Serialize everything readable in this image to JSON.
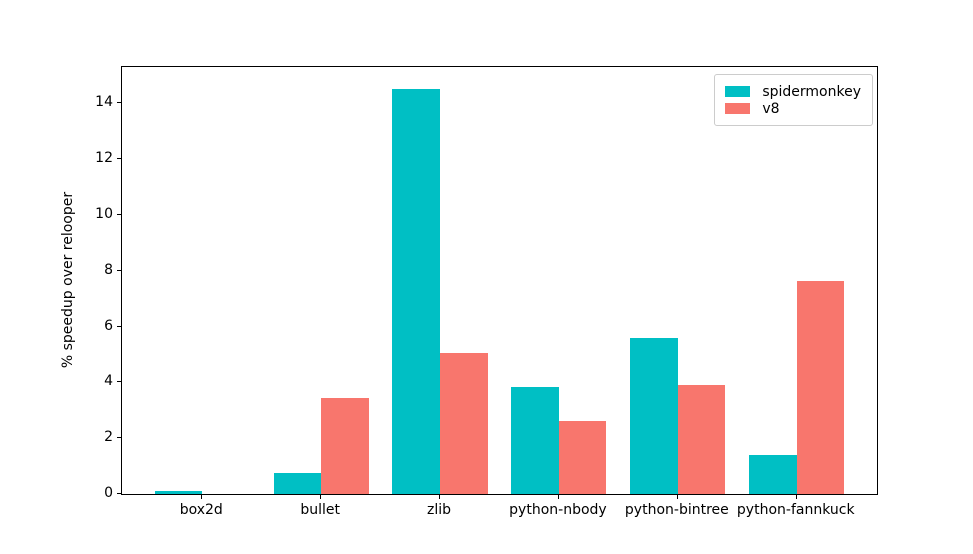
{
  "chart_data": {
    "type": "bar",
    "title": "",
    "xlabel": "",
    "ylabel": "% speedup over relooper",
    "categories": [
      "box2d",
      "bullet",
      "zlib",
      "python-nbody",
      "python-bintree",
      "python-fannkuck"
    ],
    "series": [
      {
        "name": "spidermonkey",
        "color": "#00BFC4",
        "values": [
          0.1,
          0.75,
          14.5,
          3.85,
          5.6,
          1.4
        ]
      },
      {
        "name": "v8",
        "color": "#F8766D",
        "values": [
          0.0,
          3.45,
          5.05,
          2.6,
          3.9,
          7.65
        ]
      }
    ],
    "yticks": [
      0,
      2,
      4,
      6,
      8,
      10,
      12,
      14
    ],
    "ylim": [
      0,
      15.3
    ],
    "grid": false,
    "legend_position": "upper right",
    "legend_labels": [
      "spidermonkey",
      "v8"
    ],
    "spine_color": "#000000",
    "legend_border_color": "#cccccc"
  }
}
